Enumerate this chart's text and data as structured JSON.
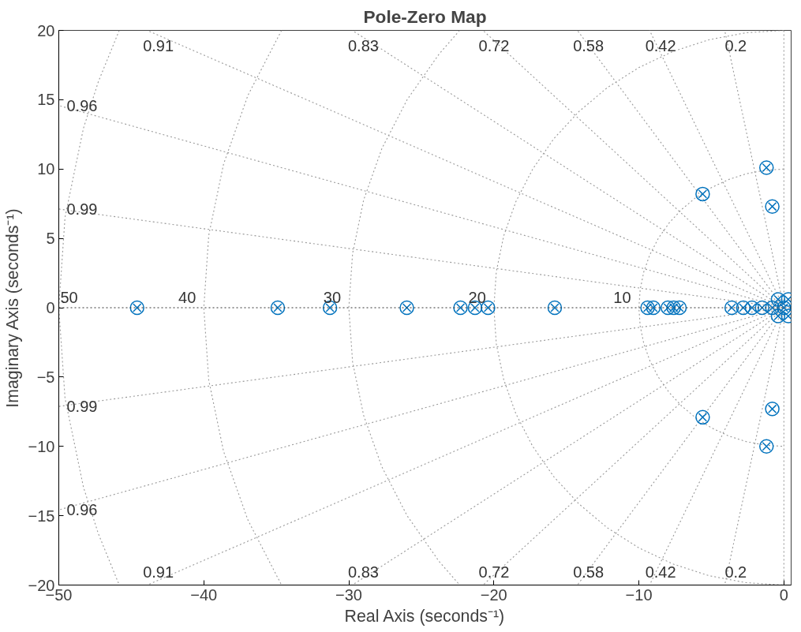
{
  "chart_data": {
    "type": "scatter",
    "title": "Pole-Zero Map",
    "xlabel": "Real Axis (seconds⁻¹)",
    "ylabel": "Imaginary Axis (seconds⁻¹)",
    "x": [
      -44.6,
      -34.9,
      -31.3,
      -26.0,
      -22.3,
      -21.3,
      -20.4,
      -15.8,
      -9.4,
      -9.0,
      -8.0,
      -7.6,
      -7.2,
      -3.6,
      -2.8,
      -2.2,
      -1.5,
      -0.8,
      0,
      -0.4,
      -0.4,
      0.3,
      0.3,
      -5.6,
      -5.6,
      -1.2,
      -1.2,
      -0.8,
      -0.8
    ],
    "series": [
      {
        "type": "line",
        "color": "#999999",
        "line_style": "dotted",
        "x": [
          0,
          -4.08
        ],
        "values": [
          0,
          20
        ]
      },
      {
        "type": "line",
        "color": "#999999",
        "line_style": "dotted",
        "x": [
          0,
          -9.26
        ],
        "values": [
          0,
          20
        ]
      },
      {
        "type": "line",
        "color": "#999999",
        "line_style": "dotted",
        "x": [
          0,
          -14.24
        ],
        "values": [
          0,
          20
        ]
      },
      {
        "type": "line",
        "color": "#999999",
        "line_style": "dotted",
        "x": [
          0,
          -20.75
        ],
        "values": [
          0,
          20
        ]
      },
      {
        "type": "line",
        "color": "#999999",
        "line_style": "dotted",
        "x": [
          0,
          -29.76
        ],
        "values": [
          0,
          20
        ]
      },
      {
        "type": "line",
        "color": "#999999",
        "line_style": "dotted",
        "x": [
          0,
          -43.9
        ],
        "values": [
          0,
          20
        ]
      },
      {
        "type": "line",
        "color": "#999999",
        "line_style": "dotted",
        "x": [
          0,
          -50
        ],
        "values": [
          0,
          14.58
        ]
      },
      {
        "type": "line",
        "color": "#999999",
        "line_style": "dotted",
        "x": [
          0,
          -50
        ],
        "values": [
          0,
          7.12
        ]
      },
      {
        "type": "line",
        "color": "#999999",
        "line_style": "dotted",
        "x": [
          0,
          -50
        ],
        "values": [
          0,
          -7.12
        ]
      },
      {
        "type": "line",
        "color": "#999999",
        "line_style": "dotted",
        "x": [
          0,
          -50
        ],
        "values": [
          0,
          -14.58
        ]
      },
      {
        "type": "line",
        "color": "#999999",
        "line_style": "dotted",
        "x": [
          0,
          -43.9
        ],
        "values": [
          0,
          -20
        ]
      },
      {
        "type": "line",
        "color": "#999999",
        "line_style": "dotted",
        "x": [
          0,
          -29.76
        ],
        "values": [
          0,
          -20
        ]
      },
      {
        "type": "line",
        "color": "#999999",
        "line_style": "dotted",
        "x": [
          0,
          -20.75
        ],
        "values": [
          0,
          -20
        ]
      },
      {
        "type": "line",
        "color": "#999999",
        "line_style": "dotted",
        "x": [
          0,
          -14.24
        ],
        "values": [
          0,
          -20
        ]
      },
      {
        "type": "line",
        "color": "#999999",
        "line_style": "dotted",
        "x": [
          0,
          -9.26
        ],
        "values": [
          0,
          -20
        ]
      },
      {
        "type": "line",
        "color": "#999999",
        "line_style": "dotted",
        "x": [
          0,
          -4.08
        ],
        "values": [
          0,
          -20
        ]
      },
      {
        "type": "line",
        "color": "#999999",
        "line_style": "dotted",
        "x": [
          0,
          0
        ],
        "values": [
          20,
          -20
        ]
      },
      {
        "type": "line",
        "color": "#999999",
        "line_style": "dotted",
        "x": [
          0,
          -1.31,
          -2.59,
          -3.83,
          -5,
          -6.09,
          -7.07,
          -7.93,
          -8.66,
          -9.24,
          -9.66,
          -9.91,
          -10,
          -9.91,
          -9.66,
          -9.24,
          -8.66,
          -7.93,
          -7.07,
          -6.09,
          -5,
          -3.83,
          -2.59,
          -1.31,
          0
        ],
        "values": [
          10,
          9.91,
          9.66,
          9.24,
          8.66,
          7.93,
          7.07,
          6.09,
          5,
          3.83,
          2.59,
          1.31,
          0,
          -1.31,
          -2.59,
          -3.83,
          -5,
          -6.09,
          -7.07,
          -7.93,
          -8.66,
          -9.24,
          -9.66,
          -9.91,
          -10
        ]
      },
      {
        "type": "line",
        "color": "#999999",
        "line_style": "dotted",
        "x": [
          0,
          -2.61,
          -5.18,
          -7.65,
          -10,
          -12.18,
          -14.14,
          -15.87,
          -17.32,
          -18.48,
          -19.32,
          -19.83,
          -20,
          -19.83,
          -19.32,
          -18.48,
          -17.32,
          -15.87,
          -14.14,
          -12.18,
          -10,
          -7.65,
          -5.18,
          -2.61,
          0
        ],
        "values": [
          20,
          19.83,
          19.32,
          18.48,
          17.32,
          15.87,
          14.14,
          12.18,
          10,
          7.65,
          5.18,
          2.61,
          0,
          -2.61,
          -5.18,
          -7.65,
          -10,
          -12.18,
          -14.14,
          -15.87,
          -17.32,
          -18.48,
          -19.32,
          -19.83,
          -20
        ]
      },
      {
        "type": "line",
        "color": "#999999",
        "line_style": "dotted",
        "x": [
          -22.36,
          -23.8,
          -25.98,
          -27.72,
          -28.98,
          -29.74,
          -30,
          -29.74,
          -28.98,
          -27.72,
          -25.98,
          -23.8,
          -22.36
        ],
        "values": [
          20,
          18.26,
          15,
          11.48,
          7.76,
          3.92,
          0,
          -3.92,
          -7.76,
          -11.48,
          -15,
          -18.26,
          -20
        ]
      },
      {
        "type": "line",
        "color": "#999999",
        "line_style": "dotted",
        "x": [
          -34.64,
          -36.96,
          -38.64,
          -39.66,
          -40,
          -39.66,
          -38.64,
          -36.96,
          -34.64
        ],
        "values": [
          20,
          15.31,
          10.35,
          5.22,
          0,
          -5.22,
          -10.35,
          -15.31,
          -20
        ]
      },
      {
        "type": "line",
        "color": "#999999",
        "line_style": "dotted",
        "x": [
          -45.83,
          -47.28,
          -48.3,
          -49.57,
          -50,
          -49.57,
          -48.3,
          -47.28,
          -45.83
        ],
        "values": [
          20,
          16.28,
          12.94,
          6.53,
          0,
          -6.53,
          -12.94,
          -16.28,
          -20
        ]
      },
      {
        "color": "#0072bd",
        "marker": "circle",
        "values": [
          0,
          0,
          0,
          0,
          0,
          0,
          0,
          0,
          0,
          0,
          0,
          0,
          0,
          0,
          0,
          0,
          0,
          0,
          0,
          0.6,
          -0.6,
          0.6,
          -0.6,
          8.2,
          -7.9,
          10.1,
          -10.0,
          7.3,
          -7.3
        ]
      },
      {
        "color": "#0072bd",
        "marker": "cross",
        "values": [
          0,
          0,
          0,
          0,
          0,
          0,
          0,
          0,
          0,
          0,
          0,
          0,
          0,
          0,
          0,
          0,
          0,
          0,
          0,
          0.6,
          -0.6,
          0.6,
          -0.6,
          8.2,
          -7.9,
          10.1,
          -10.0,
          7.3,
          -7.3
        ]
      }
    ],
    "ref_lines": [
      {
        "axis": "y",
        "value": 0,
        "color": "#333333",
        "line_style": "dotted"
      }
    ],
    "xlim": [
      -50,
      0.5
    ],
    "ylim": [
      -20,
      20
    ],
    "xticks": [
      -50,
      -40,
      -30,
      -20,
      -10,
      0
    ],
    "yticks": [
      -20,
      -15,
      -10,
      -5,
      0,
      5,
      10,
      15,
      20
    ],
    "annotations": [
      {
        "text": "0.91",
        "x": -43.9,
        "y": 20
      },
      {
        "text": "0.83",
        "x": -29.76,
        "y": 20
      },
      {
        "text": "0.72",
        "x": -20.75,
        "y": 20
      },
      {
        "text": "0.58",
        "x": -14.24,
        "y": 20
      },
      {
        "text": "0.42",
        "x": -9.26,
        "y": 20
      },
      {
        "text": "0.2",
        "x": -4.08,
        "y": 20
      },
      {
        "text": "0.96",
        "x": -50,
        "y": 14.58
      },
      {
        "text": "0.99",
        "x": -50,
        "y": 7.12
      },
      {
        "text": "0.99",
        "x": -50,
        "y": -7.12
      },
      {
        "text": "0.96",
        "x": -50,
        "y": -14.58
      },
      {
        "text": "0.91",
        "x": -43.9,
        "y": -20
      },
      {
        "text": "0.83",
        "x": -29.76,
        "y": -20
      },
      {
        "text": "0.72",
        "x": -20.75,
        "y": -20
      },
      {
        "text": "0.58",
        "x": -14.24,
        "y": -20
      },
      {
        "text": "0.42",
        "x": -9.26,
        "y": -20
      },
      {
        "text": "0.2",
        "x": -4.08,
        "y": -20
      },
      {
        "text": "50",
        "x": -50,
        "y": 0
      },
      {
        "text": "40",
        "x": -40,
        "y": 0
      },
      {
        "text": "30",
        "x": -30,
        "y": 0
      },
      {
        "text": "20",
        "x": -20,
        "y": 0
      },
      {
        "text": "10",
        "x": -10,
        "y": 0
      }
    ]
  }
}
